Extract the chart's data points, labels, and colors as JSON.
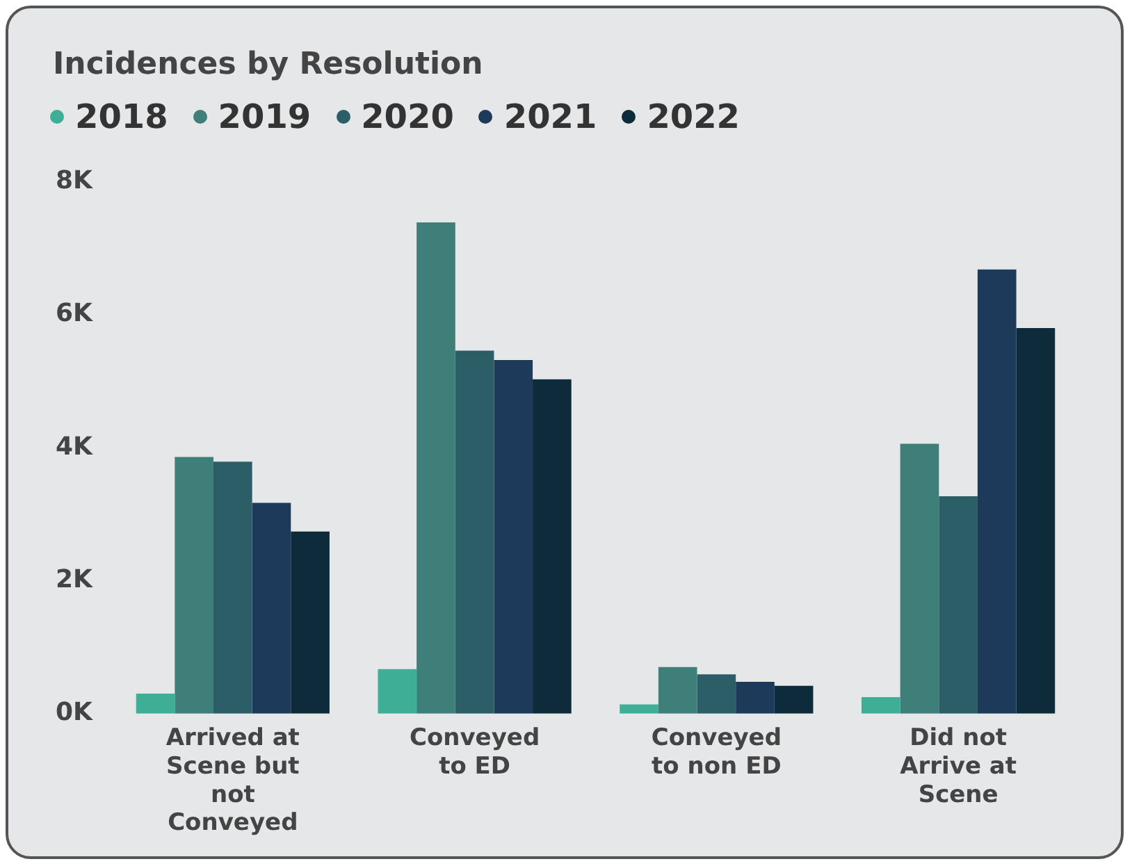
{
  "chart_data": {
    "type": "bar",
    "title": "Incidences by Resolution",
    "categories": [
      "Arrived at Scene but not Conveyed",
      "Conveyed to ED",
      "Conveyed to non ED",
      "Did not Arrive at Scene"
    ],
    "series": [
      {
        "name": "2018",
        "color": "#3fae96",
        "values": [
          300,
          670,
          140,
          250
        ]
      },
      {
        "name": "2019",
        "color": "#3f7f7a",
        "values": [
          3860,
          7390,
          700,
          4060
        ]
      },
      {
        "name": "2020",
        "color": "#2b5e66",
        "values": [
          3790,
          5460,
          590,
          3270
        ]
      },
      {
        "name": "2021",
        "color": "#1d3a5a",
        "values": [
          3170,
          5320,
          480,
          6680
        ]
      },
      {
        "name": "2022",
        "color": "#0d2b3a",
        "values": [
          2740,
          5030,
          420,
          5800
        ]
      }
    ],
    "ylim": [
      0,
      8000
    ],
    "yticks": [
      {
        "value": 0,
        "label": "0K"
      },
      {
        "value": 2000,
        "label": "2K"
      },
      {
        "value": 4000,
        "label": "4K"
      },
      {
        "value": 6000,
        "label": "6K"
      },
      {
        "value": 8000,
        "label": "8K"
      }
    ],
    "grid": false,
    "legend": "top left"
  }
}
